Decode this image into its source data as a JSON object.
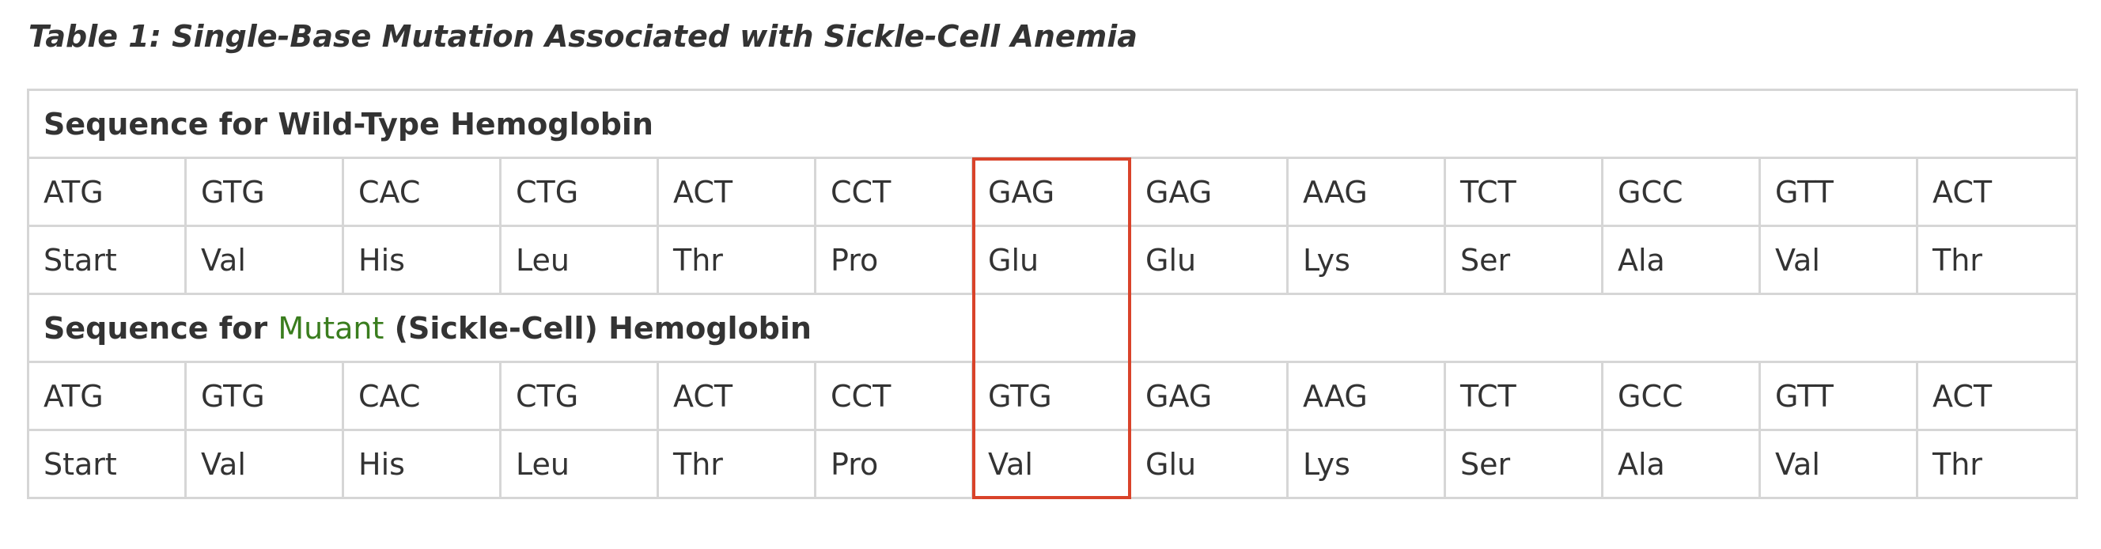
{
  "caption": "Table 1: Single-Base Mutation Associated with Sickle-Cell Anemia",
  "wild_type": {
    "header": "Sequence for Wild-Type Hemoglobin",
    "codons": [
      "ATG",
      "GTG",
      "CAC",
      "CTG",
      "ACT",
      "CCT",
      "GAG",
      "GAG",
      "AAG",
      "TCT",
      "GCC",
      "GTT",
      "ACT"
    ],
    "amino_acids": [
      "Start",
      "Val",
      "His",
      "Leu",
      "Thr",
      "Pro",
      "Glu",
      "Glu",
      "Lys",
      "Ser",
      "Ala",
      "Val",
      "Thr"
    ]
  },
  "mutant": {
    "header_prefix": "Sequence for ",
    "header_highlight": "Mutant",
    "header_suffix": " (Sickle-Cell) Hemoglobin",
    "codons": [
      "ATG",
      "GTG",
      "CAC",
      "CTG",
      "ACT",
      "CCT",
      "GTG",
      "GAG",
      "AAG",
      "TCT",
      "GCC",
      "GTT",
      "ACT"
    ],
    "amino_acids": [
      "Start",
      "Val",
      "His",
      "Leu",
      "Thr",
      "Pro",
      "Val",
      "Glu",
      "Lys",
      "Ser",
      "Ala",
      "Val",
      "Thr"
    ]
  },
  "highlight": {
    "column": 7,
    "color": "#d9432a"
  },
  "colors": {
    "mutant_text": "#3a7d1e",
    "border": "#d6d6d6",
    "text": "#333333"
  }
}
